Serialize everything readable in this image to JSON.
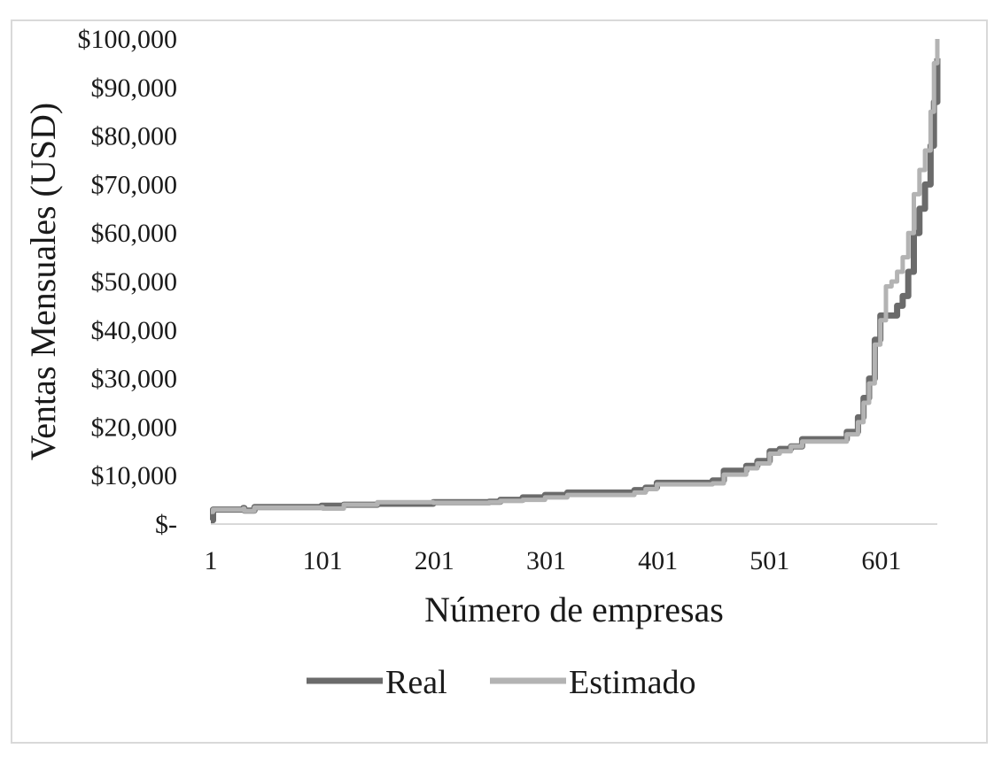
{
  "chart_data": {
    "type": "line",
    "title": "",
    "xlabel": "Número de empresas",
    "ylabel": "Ventas Mensuales (USD)",
    "ylim": [
      0,
      100000
    ],
    "xlim": [
      1,
      651
    ],
    "x_ticks": [
      "1",
      "101",
      "201",
      "301",
      "401",
      "501",
      "601"
    ],
    "y_ticks": [
      "$-",
      "$10,000",
      "$20,000",
      "$30,000",
      "$40,000",
      "$50,000",
      "$60,000",
      "$70,000",
      "$80,000",
      "$90,000",
      "$100,000"
    ],
    "grid": false,
    "legend_position": "bottom",
    "series": [
      {
        "name": "Real",
        "color": "#6b6b6b",
        "points": [
          [
            1,
            800
          ],
          [
            3,
            3000
          ],
          [
            30,
            3300
          ],
          [
            31,
            2800
          ],
          [
            40,
            3500
          ],
          [
            100,
            3800
          ],
          [
            120,
            4000
          ],
          [
            150,
            4200
          ],
          [
            200,
            4500
          ],
          [
            250,
            4600
          ],
          [
            260,
            5000
          ],
          [
            280,
            5500
          ],
          [
            300,
            6000
          ],
          [
            320,
            6500
          ],
          [
            380,
            7000
          ],
          [
            390,
            7500
          ],
          [
            400,
            8500
          ],
          [
            450,
            9000
          ],
          [
            460,
            11000
          ],
          [
            480,
            12000
          ],
          [
            490,
            13000
          ],
          [
            500,
            13000
          ],
          [
            501,
            15000
          ],
          [
            510,
            15500
          ],
          [
            520,
            16000
          ],
          [
            530,
            17500
          ],
          [
            560,
            17500
          ],
          [
            570,
            19000
          ],
          [
            580,
            22000
          ],
          [
            585,
            26000
          ],
          [
            590,
            30000
          ],
          [
            595,
            38000
          ],
          [
            600,
            43000
          ],
          [
            610,
            43000
          ],
          [
            615,
            45000
          ],
          [
            620,
            47000
          ],
          [
            625,
            52000
          ],
          [
            630,
            60000
          ],
          [
            635,
            65000
          ],
          [
            640,
            70000
          ],
          [
            645,
            78000
          ],
          [
            648,
            87000
          ],
          [
            651,
            96000
          ]
        ]
      },
      {
        "name": "Estimado",
        "color": "#b3b3b3",
        "points": [
          [
            1,
            2500
          ],
          [
            3,
            3000
          ],
          [
            30,
            3200
          ],
          [
            31,
            2700
          ],
          [
            40,
            3400
          ],
          [
            100,
            3500
          ],
          [
            101,
            3200
          ],
          [
            120,
            4000
          ],
          [
            150,
            4500
          ],
          [
            200,
            4400
          ],
          [
            250,
            4500
          ],
          [
            260,
            4800
          ],
          [
            280,
            5000
          ],
          [
            300,
            5500
          ],
          [
            320,
            6000
          ],
          [
            380,
            6500
          ],
          [
            390,
            7200
          ],
          [
            400,
            8200
          ],
          [
            450,
            8400
          ],
          [
            460,
            10200
          ],
          [
            480,
            11500
          ],
          [
            490,
            12500
          ],
          [
            500,
            12500
          ],
          [
            501,
            14500
          ],
          [
            510,
            15000
          ],
          [
            520,
            16000
          ],
          [
            530,
            17000
          ],
          [
            560,
            17000
          ],
          [
            570,
            18500
          ],
          [
            580,
            21000
          ],
          [
            585,
            25000
          ],
          [
            590,
            29000
          ],
          [
            595,
            37000
          ],
          [
            600,
            42000
          ],
          [
            605,
            49000
          ],
          [
            610,
            50000
          ],
          [
            615,
            52000
          ],
          [
            620,
            55000
          ],
          [
            625,
            60000
          ],
          [
            630,
            68000
          ],
          [
            635,
            73000
          ],
          [
            640,
            77000
          ],
          [
            645,
            85000
          ],
          [
            648,
            95000
          ],
          [
            651,
            100000
          ]
        ]
      }
    ]
  }
}
